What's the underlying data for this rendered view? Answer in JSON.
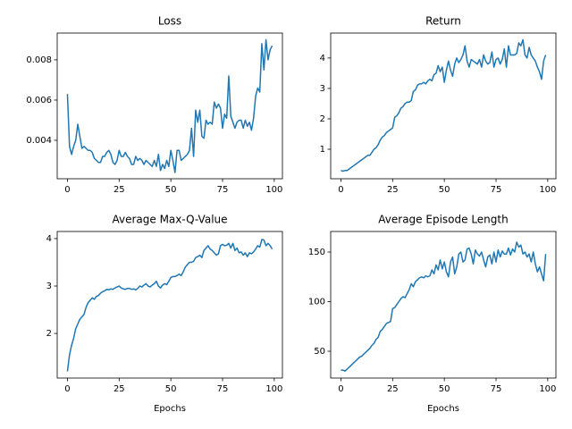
{
  "chart_data": [
    {
      "type": "line",
      "title": "Loss",
      "color": "#1f77b4",
      "x": [
        0,
        1,
        2,
        3,
        4,
        5,
        6,
        7,
        8,
        9,
        10,
        11,
        12,
        13,
        14,
        15,
        16,
        17,
        18,
        19,
        20,
        21,
        22,
        23,
        24,
        25,
        26,
        27,
        28,
        29,
        30,
        31,
        32,
        33,
        34,
        35,
        36,
        37,
        38,
        39,
        40,
        41,
        42,
        43,
        44,
        45,
        46,
        47,
        48,
        49,
        50,
        51,
        52,
        53,
        54,
        55,
        56,
        57,
        58,
        59,
        60,
        61,
        62,
        63,
        64,
        65,
        66,
        67,
        68,
        69,
        70,
        71,
        72,
        73,
        74,
        75,
        76,
        77,
        78,
        79,
        80,
        81,
        82,
        83,
        84,
        85,
        86,
        87,
        88,
        89,
        90,
        91,
        92,
        93,
        94,
        95,
        96,
        97,
        98,
        99
      ],
      "values": [
        0.0063,
        0.0037,
        0.0033,
        0.0037,
        0.004,
        0.0048,
        0.0042,
        0.0036,
        0.0037,
        0.0036,
        0.0035,
        0.0035,
        0.0034,
        0.0031,
        0.003,
        0.0029,
        0.0029,
        0.0032,
        0.0032,
        0.0034,
        0.0035,
        0.0033,
        0.0029,
        0.0028,
        0.003,
        0.0035,
        0.0032,
        0.0032,
        0.0034,
        0.0032,
        0.0031,
        0.0028,
        0.0028,
        0.0032,
        0.003,
        0.0031,
        0.003,
        0.0028,
        0.003,
        0.0029,
        0.0028,
        0.0027,
        0.003,
        0.0027,
        0.0033,
        0.0025,
        0.0028,
        0.0026,
        0.003,
        0.0027,
        0.0035,
        0.003,
        0.0024,
        0.0035,
        0.0035,
        0.003,
        0.0031,
        0.0032,
        0.0033,
        0.0035,
        0.0046,
        0.0032,
        0.0055,
        0.0049,
        0.0055,
        0.0042,
        0.0041,
        0.005,
        0.0048,
        0.0049,
        0.0048,
        0.0059,
        0.0056,
        0.0058,
        0.0056,
        0.0046,
        0.0053,
        0.0051,
        0.0072,
        0.0052,
        0.0049,
        0.0046,
        0.0049,
        0.005,
        0.005,
        0.0046,
        0.005,
        0.0047,
        0.0049,
        0.0045,
        0.0051,
        0.0062,
        0.0066,
        0.0064,
        0.0088,
        0.0075,
        0.009,
        0.008,
        0.0085,
        0.0087
      ],
      "xlim": [
        -4.95,
        103.95
      ],
      "xticks": [
        0,
        25,
        50,
        75,
        100
      ],
      "ylim": [
        0.00209,
        0.00933
      ],
      "yticks": [
        0.004,
        0.006,
        0.008
      ]
    },
    {
      "type": "line",
      "title": "Return",
      "color": "#1f77b4",
      "x": [
        0,
        1,
        2,
        3,
        4,
        5,
        6,
        7,
        8,
        9,
        10,
        11,
        12,
        13,
        14,
        15,
        16,
        17,
        18,
        19,
        20,
        21,
        22,
        23,
        24,
        25,
        26,
        27,
        28,
        29,
        30,
        31,
        32,
        33,
        34,
        35,
        36,
        37,
        38,
        39,
        40,
        41,
        42,
        43,
        44,
        45,
        46,
        47,
        48,
        49,
        50,
        51,
        52,
        53,
        54,
        55,
        56,
        57,
        58,
        59,
        60,
        61,
        62,
        63,
        64,
        65,
        66,
        67,
        68,
        69,
        70,
        71,
        72,
        73,
        74,
        75,
        76,
        77,
        78,
        79,
        80,
        81,
        82,
        83,
        84,
        85,
        86,
        87,
        88,
        89,
        90,
        91,
        92,
        93,
        94,
        95,
        96,
        97,
        98,
        99
      ],
      "values": [
        0.3,
        0.28,
        0.3,
        0.3,
        0.35,
        0.4,
        0.45,
        0.5,
        0.55,
        0.6,
        0.65,
        0.7,
        0.75,
        0.8,
        0.8,
        0.9,
        1.0,
        1.05,
        1.15,
        1.3,
        1.4,
        1.45,
        1.55,
        1.6,
        1.65,
        1.7,
        2.05,
        2.1,
        2.2,
        2.35,
        2.4,
        2.5,
        2.55,
        2.55,
        2.6,
        2.9,
        2.95,
        3.1,
        3.15,
        3.15,
        3.2,
        3.15,
        3.25,
        3.3,
        3.25,
        3.45,
        3.5,
        3.75,
        3.55,
        3.7,
        3.2,
        3.6,
        3.9,
        3.6,
        3.4,
        3.8,
        4.0,
        3.85,
        3.95,
        4.1,
        4.4,
        3.9,
        3.7,
        3.95,
        3.9,
        3.85,
        3.8,
        3.95,
        3.7,
        4.1,
        3.9,
        3.8,
        3.85,
        4.2,
        3.7,
        3.95,
        4.0,
        3.8,
        3.95,
        4.3,
        3.7,
        4.4,
        4.1,
        4.1,
        4.1,
        4.15,
        4.5,
        4.4,
        4.6,
        4.1,
        4.0,
        4.35,
        4.1,
        4.0,
        3.9,
        3.7,
        3.55,
        3.3,
        3.9,
        4.1
      ],
      "xlim": [
        -4.95,
        103.95
      ],
      "xticks": [
        0,
        25,
        50,
        75,
        100
      ],
      "ylim": [
        0.03,
        4.82
      ],
      "yticks": [
        1,
        2,
        3,
        4
      ]
    },
    {
      "type": "line",
      "title": "Average Max-Q-Value",
      "x_label": "Epochs",
      "color": "#1f77b4",
      "x": [
        0,
        1,
        2,
        3,
        4,
        5,
        6,
        7,
        8,
        9,
        10,
        11,
        12,
        13,
        14,
        15,
        16,
        17,
        18,
        19,
        20,
        21,
        22,
        23,
        24,
        25,
        26,
        27,
        28,
        29,
        30,
        31,
        32,
        33,
        34,
        35,
        36,
        37,
        38,
        39,
        40,
        41,
        42,
        43,
        44,
        45,
        46,
        47,
        48,
        49,
        50,
        51,
        52,
        53,
        54,
        55,
        56,
        57,
        58,
        59,
        60,
        61,
        62,
        63,
        64,
        65,
        66,
        67,
        68,
        69,
        70,
        71,
        72,
        73,
        74,
        75,
        76,
        77,
        78,
        79,
        80,
        81,
        82,
        83,
        84,
        85,
        86,
        87,
        88,
        89,
        90,
        91,
        92,
        93,
        94,
        95,
        96,
        97,
        98,
        99
      ],
      "values": [
        1.2,
        1.55,
        1.75,
        1.9,
        2.1,
        2.2,
        2.3,
        2.35,
        2.4,
        2.55,
        2.65,
        2.7,
        2.75,
        2.72,
        2.78,
        2.8,
        2.85,
        2.88,
        2.9,
        2.93,
        2.92,
        2.94,
        2.93,
        2.96,
        2.98,
        3.0,
        2.96,
        2.94,
        2.93,
        2.95,
        2.95,
        2.93,
        2.94,
        2.92,
        2.95,
        3.0,
        2.98,
        3.02,
        3.05,
        3.0,
        2.98,
        3.02,
        3.05,
        3.1,
        3.0,
        2.96,
        3.02,
        3.05,
        3.03,
        3.1,
        3.18,
        3.2,
        3.2,
        3.22,
        3.25,
        3.22,
        3.3,
        3.4,
        3.45,
        3.5,
        3.5,
        3.52,
        3.6,
        3.62,
        3.65,
        3.6,
        3.75,
        3.8,
        3.85,
        3.78,
        3.75,
        3.7,
        3.65,
        3.68,
        3.85,
        3.88,
        3.85,
        3.86,
        3.9,
        3.8,
        3.9,
        3.75,
        3.8,
        3.7,
        3.72,
        3.65,
        3.7,
        3.62,
        3.7,
        3.68,
        3.72,
        3.78,
        3.85,
        3.82,
        3.98,
        3.97,
        3.85,
        3.9,
        3.85,
        3.78
      ],
      "xlim": [
        -4.95,
        103.95
      ],
      "xticks": [
        0,
        25,
        50,
        75,
        100
      ],
      "ylim": [
        1.06,
        4.15
      ],
      "yticks": [
        2,
        3,
        4
      ]
    },
    {
      "type": "line",
      "title": "Average Episode Length",
      "x_label": "Epochs",
      "color": "#1f77b4",
      "x": [
        0,
        1,
        2,
        3,
        4,
        5,
        6,
        7,
        8,
        9,
        10,
        11,
        12,
        13,
        14,
        15,
        16,
        17,
        18,
        19,
        20,
        21,
        22,
        23,
        24,
        25,
        26,
        27,
        28,
        29,
        30,
        31,
        32,
        33,
        34,
        35,
        36,
        37,
        38,
        39,
        40,
        41,
        42,
        43,
        44,
        45,
        46,
        47,
        48,
        49,
        50,
        51,
        52,
        53,
        54,
        55,
        56,
        57,
        58,
        59,
        60,
        61,
        62,
        63,
        64,
        65,
        66,
        67,
        68,
        69,
        70,
        71,
        72,
        73,
        74,
        75,
        76,
        77,
        78,
        79,
        80,
        81,
        82,
        83,
        84,
        85,
        86,
        87,
        88,
        89,
        90,
        91,
        92,
        93,
        94,
        95,
        96,
        97,
        98,
        99
      ],
      "values": [
        31,
        31,
        30,
        32,
        34,
        36,
        38,
        40,
        42,
        44,
        45,
        47,
        49,
        51,
        53,
        56,
        58,
        62,
        64,
        70,
        72,
        75,
        78,
        79,
        80,
        93,
        94,
        97,
        100,
        103,
        105,
        104,
        108,
        112,
        118,
        115,
        120,
        122,
        124,
        125,
        124,
        126,
        125,
        126,
        132,
        128,
        137,
        132,
        142,
        133,
        140,
        130,
        125,
        140,
        145,
        128,
        135,
        148,
        150,
        140,
        142,
        153,
        154,
        148,
        138,
        152,
        148,
        146,
        150,
        142,
        135,
        145,
        147,
        138,
        150,
        140,
        152,
        145,
        151,
        148,
        148,
        154,
        147,
        153,
        150,
        160,
        155,
        157,
        148,
        150,
        145,
        148,
        140,
        150,
        138,
        130,
        135,
        128,
        121,
        148
      ],
      "xlim": [
        -4.95,
        103.95
      ],
      "xticks": [
        0,
        25,
        50,
        75,
        100
      ],
      "ylim": [
        23,
        170.7
      ],
      "yticks": [
        50,
        100,
        150
      ]
    }
  ]
}
